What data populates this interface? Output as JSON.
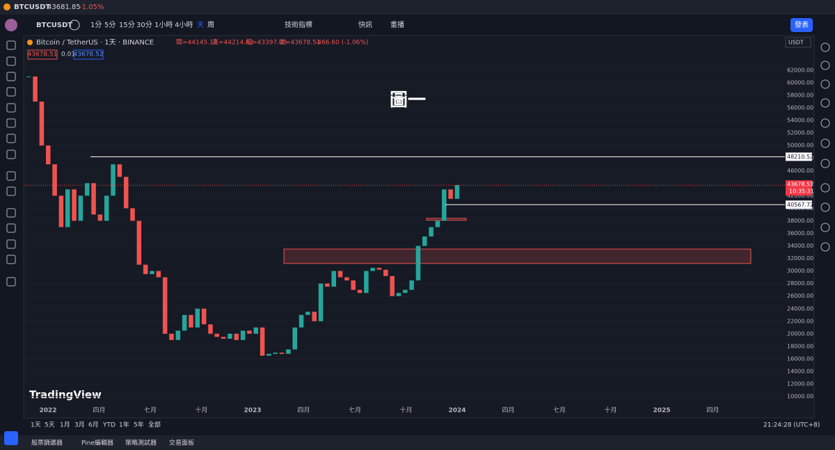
{
  "tab": {
    "symbol": "BTCUSDT",
    "price": "43681.85",
    "change": "-1.05%"
  },
  "toolbar": {
    "symbol": "BTCUSDT",
    "intervals": [
      "1分",
      "5分",
      "15分",
      "30分",
      "1小時",
      "4小時",
      "天",
      "周"
    ],
    "indicators": "技術指標",
    "alerts": "快訊",
    "replay": "重播",
    "publish": "發表"
  },
  "legend": {
    "title": "Bitcoin / TetherUS · 1天 · BINANCE",
    "open": "開=44145.12",
    "high": "高=44214.42",
    "low": "低=43397.05",
    "close": "收=43678.51",
    "change": "-466.60 (-1.06%)",
    "bid": "43678.51",
    "spread": "0.01",
    "ask": "43678.52"
  },
  "annotation": "圖一",
  "watermark": "TradingView",
  "chart_data": {
    "type": "candlestick",
    "closes": [
      61000,
      57000,
      50000,
      47000,
      42000,
      37000,
      43000,
      38000,
      42000,
      44000,
      39000,
      38000,
      42000,
      47000,
      45000,
      40000,
      38000,
      31000,
      29500,
      30000,
      29000,
      20000,
      19000,
      20500,
      23000,
      21000,
      24000,
      21500,
      20000,
      19500,
      19200,
      20000,
      19000,
      20500,
      20000,
      21000,
      16500,
      16800,
      17000,
      16800,
      17500,
      21000,
      23000,
      23500,
      22000,
      28000,
      27500,
      30000,
      29000,
      28500,
      27000,
      26500,
      30000,
      30500,
      30200,
      29200,
      26000,
      26500,
      27000,
      28500,
      34000,
      35500,
      37000,
      38000,
      43000,
      41500,
      43700
    ],
    "ylim": [
      8900,
      65650
    ],
    "yticks": [
      {
        "value": 10000,
        "label": "10000.00"
      },
      {
        "value": 12000,
        "label": "12000.00"
      },
      {
        "value": 14000,
        "label": "14000.00"
      },
      {
        "value": 16000,
        "label": "16000.00"
      },
      {
        "value": 18000,
        "label": "18000.00"
      },
      {
        "value": 20000,
        "label": "20000.00"
      },
      {
        "value": 22000,
        "label": "22000.00"
      },
      {
        "value": 24000,
        "label": "24000.00"
      },
      {
        "value": 26000,
        "label": "26000.00"
      },
      {
        "value": 28000,
        "label": "28000.00"
      },
      {
        "value": 30000,
        "label": "30000.00"
      },
      {
        "value": 32000,
        "label": "32000.00"
      },
      {
        "value": 34000,
        "label": "34000.00"
      },
      {
        "value": 36000,
        "label": "36000.00"
      },
      {
        "value": 38000,
        "label": "38000.00"
      },
      {
        "value": 40000,
        "label": "40000.00"
      },
      {
        "value": 42000,
        "label": "42000.00"
      },
      {
        "value": 44000,
        "label": "44000.00"
      },
      {
        "value": 46000,
        "label": "46000.00"
      },
      {
        "value": 48000,
        "label": "48000.00"
      },
      {
        "value": 50000,
        "label": "50000.00"
      },
      {
        "value": 52000,
        "label": "52000.00"
      },
      {
        "value": 54000,
        "label": "54000.00"
      },
      {
        "value": 56000,
        "label": "56000.00"
      },
      {
        "value": 58000,
        "label": "58000.00"
      },
      {
        "value": 60000,
        "label": "60000.00"
      },
      {
        "value": 62000,
        "label": "62000.00"
      }
    ],
    "currency": "USDT",
    "x_labels": [
      "2022",
      "四月",
      "七月",
      "十月",
      "2023",
      "四月",
      "七月",
      "十月",
      "2024",
      "四月",
      "七月",
      "十月",
      "2025",
      "四月"
    ],
    "levels": [
      48210.52,
      40567.72
    ],
    "last_price": 43678.51,
    "countdown": "10:35:31",
    "zones": [
      {
        "low": 31200,
        "high": 33500
      },
      {
        "low": 38100,
        "high": 38400
      }
    ],
    "up_color": "#26a69a",
    "down_color": "#ef5350"
  },
  "range_buttons": [
    "1天",
    "5天",
    "1月",
    "3月",
    "6月",
    "YTD",
    "1年",
    "5年",
    "全部"
  ],
  "clock": "21:24:28 (UTC+8)",
  "footer_tabs": [
    "股票篩選器",
    "Pine編輯器",
    "策略測試器",
    "交易面板"
  ]
}
